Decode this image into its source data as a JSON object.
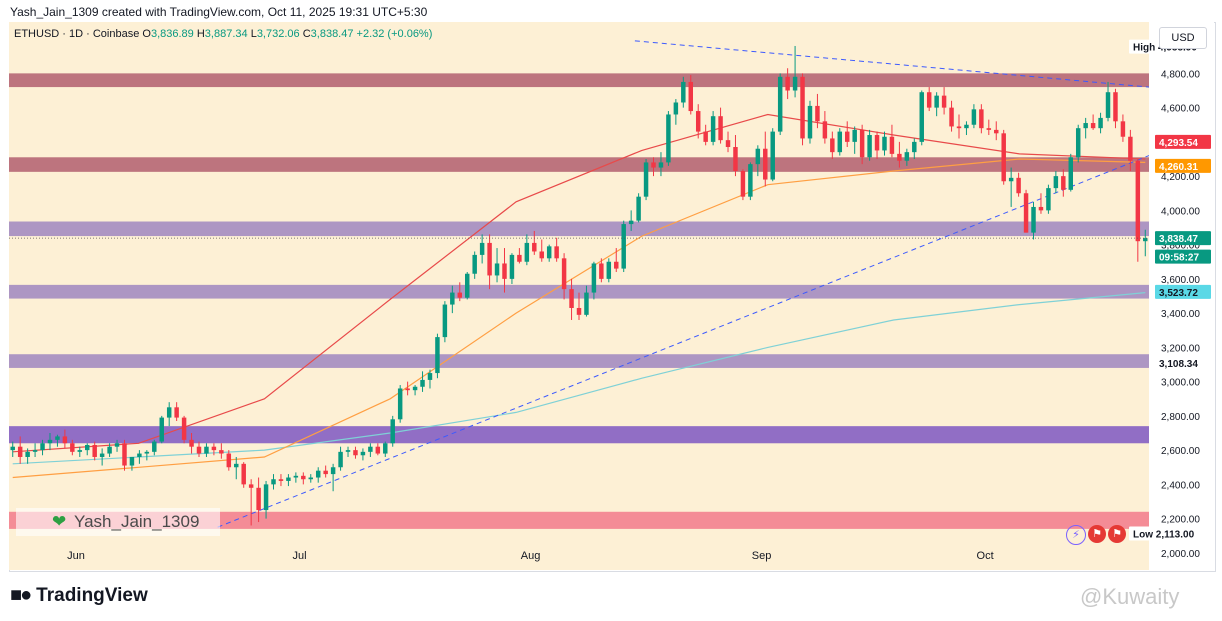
{
  "header": {
    "text": "Yash_Jain_1309 created with TradingView.com, Oct 11, 2025 19:31 UTC+5:30"
  },
  "legend": {
    "symbol": "ETHUSD · 1D · Coinbase",
    "open_label": "O",
    "open": "3,836.89",
    "high_label": "H",
    "high": "3,887.34",
    "low_label": "L",
    "low": "3,732.06",
    "close_label": "C",
    "close": "3,838.47",
    "change": "+2.32 (+0.06%)"
  },
  "currency": "USD",
  "watermark_user": "Yash_Jain_1309",
  "logo_text": "TradingView",
  "watermark_right": "@Kuwaity",
  "colors": {
    "up": "#089981",
    "down": "#f23645",
    "bg": "#fdf0d5"
  },
  "icons": [
    "lightning-icon",
    "us-flag-icon",
    "us-flag-icon"
  ],
  "chart_data": {
    "type": "candlestick",
    "symbol": "ETHUSD",
    "ylim": [
      1900,
      5100
    ],
    "y_ticks": [
      2000,
      2200,
      2400,
      2600,
      2800,
      3000,
      3200,
      3400,
      3600,
      3800,
      4000,
      4200,
      4400,
      4600,
      4800,
      5000
    ],
    "y_tick_labels": [
      "2,000.00",
      "2,200.00",
      "2,400.00",
      "2,600.00",
      "2,800.00",
      "3,000.00",
      "3,200.00",
      "3,400.00",
      "3,600.00",
      "3,800.00",
      "4,000.00",
      "4,200.00",
      "4,400.00",
      "4,600.00",
      "4,800.00",
      "5,000.00"
    ],
    "x_labels": [
      {
        "date": "2025-06-01",
        "label": "Jun"
      },
      {
        "date": "2025-07-01",
        "label": "Jul"
      },
      {
        "date": "2025-08-01",
        "label": "Aug"
      },
      {
        "date": "2025-09-01",
        "label": "Sep"
      },
      {
        "date": "2025-10-01",
        "label": "Oct"
      }
    ],
    "x_range": [
      "2025-05-23",
      "2025-10-23"
    ],
    "start_date": "2025-05-23",
    "candles": [
      [
        2600,
        2650,
        2560,
        2620
      ],
      [
        2620,
        2680,
        2520,
        2560
      ],
      [
        2560,
        2610,
        2520,
        2590
      ],
      [
        2590,
        2640,
        2560,
        2600
      ],
      [
        2600,
        2660,
        2570,
        2640
      ],
      [
        2640,
        2700,
        2600,
        2660
      ],
      [
        2660,
        2690,
        2620,
        2680
      ],
      [
        2680,
        2720,
        2610,
        2640
      ],
      [
        2640,
        2660,
        2570,
        2590
      ],
      [
        2590,
        2620,
        2560,
        2600
      ],
      [
        2600,
        2640,
        2570,
        2630
      ],
      [
        2630,
        2650,
        2540,
        2560
      ],
      [
        2560,
        2610,
        2510,
        2580
      ],
      [
        2580,
        2640,
        2560,
        2620
      ],
      [
        2620,
        2660,
        2590,
        2640
      ],
      [
        2640,
        2660,
        2480,
        2510
      ],
      [
        2510,
        2560,
        2480,
        2560
      ],
      [
        2560,
        2600,
        2520,
        2580
      ],
      [
        2580,
        2600,
        2540,
        2590
      ],
      [
        2590,
        2660,
        2570,
        2650
      ],
      [
        2650,
        2800,
        2640,
        2790
      ],
      [
        2790,
        2880,
        2740,
        2850
      ],
      [
        2850,
        2880,
        2770,
        2790
      ],
      [
        2790,
        2800,
        2640,
        2660
      ],
      [
        2660,
        2700,
        2580,
        2620
      ],
      [
        2620,
        2650,
        2560,
        2580
      ],
      [
        2580,
        2640,
        2560,
        2620
      ],
      [
        2620,
        2640,
        2570,
        2600
      ],
      [
        2600,
        2640,
        2550,
        2580
      ],
      [
        2580,
        2600,
        2480,
        2500
      ],
      [
        2500,
        2560,
        2430,
        2520
      ],
      [
        2520,
        2530,
        2380,
        2400
      ],
      [
        2400,
        2430,
        2160,
        2380
      ],
      [
        2380,
        2440,
        2180,
        2250
      ],
      [
        2250,
        2420,
        2200,
        2400
      ],
      [
        2400,
        2460,
        2370,
        2430
      ],
      [
        2430,
        2460,
        2390,
        2420
      ],
      [
        2420,
        2460,
        2390,
        2440
      ],
      [
        2440,
        2470,
        2410,
        2450
      ],
      [
        2450,
        2470,
        2400,
        2430
      ],
      [
        2430,
        2460,
        2410,
        2440
      ],
      [
        2440,
        2500,
        2410,
        2480
      ],
      [
        2480,
        2510,
        2440,
        2460
      ],
      [
        2460,
        2520,
        2360,
        2500
      ],
      [
        2500,
        2620,
        2480,
        2590
      ],
      [
        2590,
        2620,
        2560,
        2600
      ],
      [
        2600,
        2620,
        2550,
        2570
      ],
      [
        2570,
        2610,
        2540,
        2590
      ],
      [
        2590,
        2640,
        2560,
        2620
      ],
      [
        2620,
        2640,
        2570,
        2580
      ],
      [
        2580,
        2650,
        2560,
        2640
      ],
      [
        2640,
        2800,
        2620,
        2780
      ],
      [
        2780,
        2980,
        2760,
        2960
      ],
      [
        2960,
        3000,
        2920,
        2950
      ],
      [
        2950,
        2980,
        2920,
        2970
      ],
      [
        2970,
        3060,
        2940,
        3010
      ],
      [
        3010,
        3070,
        2960,
        3050
      ],
      [
        3050,
        3280,
        3020,
        3260
      ],
      [
        3260,
        3470,
        3230,
        3450
      ],
      [
        3450,
        3560,
        3400,
        3520
      ],
      [
        3520,
        3580,
        3470,
        3490
      ],
      [
        3490,
        3640,
        3480,
        3630
      ],
      [
        3630,
        3760,
        3600,
        3740
      ],
      [
        3740,
        3860,
        3690,
        3810
      ],
      [
        3810,
        3860,
        3540,
        3620
      ],
      [
        3620,
        3780,
        3580,
        3690
      ],
      [
        3690,
        3780,
        3520,
        3600
      ],
      [
        3600,
        3750,
        3570,
        3740
      ],
      [
        3740,
        3780,
        3690,
        3700
      ],
      [
        3700,
        3860,
        3680,
        3810
      ],
      [
        3810,
        3880,
        3740,
        3760
      ],
      [
        3760,
        3830,
        3700,
        3720
      ],
      [
        3720,
        3800,
        3700,
        3790
      ],
      [
        3790,
        3840,
        3700,
        3720
      ],
      [
        3720,
        3750,
        3480,
        3540
      ],
      [
        3540,
        3600,
        3360,
        3430
      ],
      [
        3430,
        3520,
        3360,
        3390
      ],
      [
        3390,
        3560,
        3380,
        3520
      ],
      [
        3520,
        3700,
        3480,
        3690
      ],
      [
        3690,
        3720,
        3580,
        3600
      ],
      [
        3600,
        3720,
        3580,
        3700
      ],
      [
        3700,
        3780,
        3640,
        3660
      ],
      [
        3660,
        3940,
        3640,
        3920
      ],
      [
        3920,
        4000,
        3880,
        3940
      ],
      [
        3940,
        4100,
        3930,
        4080
      ],
      [
        4080,
        4300,
        4060,
        4280
      ],
      [
        4280,
        4310,
        4200,
        4250
      ],
      [
        4250,
        4340,
        4200,
        4280
      ],
      [
        4280,
        4580,
        4260,
        4560
      ],
      [
        4560,
        4650,
        4500,
        4630
      ],
      [
        4630,
        4780,
        4600,
        4750
      ],
      [
        4750,
        4790,
        4560,
        4580
      ],
      [
        4580,
        4620,
        4420,
        4460
      ],
      [
        4460,
        4500,
        4380,
        4400
      ],
      [
        4400,
        4580,
        4380,
        4550
      ],
      [
        4550,
        4600,
        4390,
        4410
      ],
      [
        4410,
        4460,
        4340,
        4370
      ],
      [
        4370,
        4440,
        4200,
        4230
      ],
      [
        4230,
        4240,
        4060,
        4080
      ],
      [
        4080,
        4280,
        4060,
        4270
      ],
      [
        4270,
        4380,
        4200,
        4360
      ],
      [
        4360,
        4460,
        4140,
        4180
      ],
      [
        4180,
        4480,
        4170,
        4460
      ],
      [
        4460,
        4800,
        4440,
        4780
      ],
      [
        4780,
        4830,
        4650,
        4700
      ],
      [
        4700,
        4960,
        4660,
        4780
      ],
      [
        4780,
        4800,
        4380,
        4420
      ],
      [
        4420,
        4640,
        4390,
        4610
      ],
      [
        4610,
        4680,
        4480,
        4520
      ],
      [
        4520,
        4580,
        4390,
        4420
      ],
      [
        4420,
        4460,
        4300,
        4340
      ],
      [
        4340,
        4480,
        4320,
        4460
      ],
      [
        4460,
        4520,
        4370,
        4400
      ],
      [
        4400,
        4490,
        4330,
        4470
      ],
      [
        4470,
        4500,
        4270,
        4310
      ],
      [
        4310,
        4470,
        4290,
        4440
      ],
      [
        4440,
        4460,
        4300,
        4350
      ],
      [
        4350,
        4460,
        4320,
        4430
      ],
      [
        4430,
        4500,
        4310,
        4330
      ],
      [
        4330,
        4400,
        4250,
        4290
      ],
      [
        4290,
        4360,
        4260,
        4340
      ],
      [
        4340,
        4420,
        4300,
        4400
      ],
      [
        4400,
        4700,
        4380,
        4690
      ],
      [
        4690,
        4720,
        4580,
        4600
      ],
      [
        4600,
        4690,
        4550,
        4670
      ],
      [
        4670,
        4720,
        4560,
        4600
      ],
      [
        4600,
        4640,
        4460,
        4490
      ],
      [
        4490,
        4560,
        4420,
        4480
      ],
      [
        4480,
        4520,
        4440,
        4500
      ],
      [
        4500,
        4620,
        4480,
        4590
      ],
      [
        4590,
        4620,
        4450,
        4480
      ],
      [
        4480,
        4530,
        4440,
        4470
      ],
      [
        4470,
        4520,
        4410,
        4450
      ],
      [
        4450,
        4470,
        4150,
        4170
      ],
      [
        4170,
        4250,
        4020,
        4190
      ],
      [
        4190,
        4220,
        4080,
        4100
      ],
      [
        4100,
        4120,
        3870,
        3870
      ],
      [
        3870,
        4050,
        3830,
        4020
      ],
      [
        4020,
        4100,
        3980,
        4000
      ],
      [
        4000,
        4150,
        3980,
        4130
      ],
      [
        4130,
        4230,
        4100,
        4200
      ],
      [
        4200,
        4240,
        4080,
        4120
      ],
      [
        4120,
        4330,
        4110,
        4310
      ],
      [
        4310,
        4500,
        4280,
        4480
      ],
      [
        4480,
        4540,
        4420,
        4510
      ],
      [
        4510,
        4560,
        4470,
        4480
      ],
      [
        4480,
        4570,
        4450,
        4540
      ],
      [
        4540,
        4750,
        4520,
        4690
      ],
      [
        4690,
        4710,
        4480,
        4520
      ],
      [
        4520,
        4560,
        4400,
        4430
      ],
      [
        4430,
        4470,
        4230,
        4290
      ],
      [
        4290,
        4300,
        3700,
        3820
      ],
      [
        3820,
        3887,
        3732,
        3838
      ]
    ],
    "ema20": [
      2590,
      2640,
      2900,
      3480,
      4050,
      4350,
      4560,
      4440,
      4330,
      4300
    ],
    "ema50": [
      2440,
      2500,
      2560,
      2900,
      3400,
      3850,
      4150,
      4230,
      4300,
      4280
    ],
    "sma200": [
      2520,
      2560,
      2600,
      2700,
      2820,
      3020,
      3200,
      3360,
      3450,
      3520
    ],
    "zones": [
      {
        "low": 4720,
        "high": 4800,
        "color": "#b25e6e"
      },
      {
        "low": 4225,
        "high": 4310,
        "color": "#b25e6e"
      },
      {
        "low": 3850,
        "high": 3935,
        "color": "#9f86c0"
      },
      {
        "low": 3485,
        "high": 3565,
        "color": "#9f86c0"
      },
      {
        "low": 3080,
        "high": 3160,
        "color": "#9f86c0"
      },
      {
        "low": 2640,
        "high": 2740,
        "color": "#7e57c2"
      },
      {
        "low": 2140,
        "high": 2240,
        "color": "#f27a8b"
      }
    ],
    "trendlines": [
      {
        "from": [
          "2025-06-20",
          2150
        ],
        "to": [
          "2025-10-23",
          4320
        ]
      },
      {
        "from": [
          "2025-08-15",
          4990
        ],
        "to": [
          "2025-10-23",
          4720
        ]
      }
    ],
    "price_labels": [
      {
        "text": "High",
        "value": "4,955.90",
        "price": 4955.9,
        "bg": "#ffffff",
        "fg": "#131722"
      },
      {
        "value": "4,293.54",
        "price": 4400,
        "bg": "#f23645",
        "fg": "#ffffff"
      },
      {
        "value": "4,260.31",
        "price": 4260,
        "bg": "#ff9800",
        "fg": "#ffffff"
      },
      {
        "value": "3,838.47",
        "price": 3838,
        "bg": "#089981",
        "fg": "#ffffff"
      },
      {
        "value": "09:58:27",
        "price": 3730,
        "bg": "#089981",
        "fg": "#ffffff"
      },
      {
        "value": "3,523.72",
        "price": 3524,
        "bg": "#5ad8e6",
        "fg": "#131722"
      },
      {
        "value": "3,108.34",
        "price": 3108,
        "bg": "#ffffff",
        "fg": "#131722"
      },
      {
        "text": "Low",
        "value": "2,113.00",
        "price": 2113,
        "bg": "#ffffff",
        "fg": "#131722"
      }
    ]
  }
}
